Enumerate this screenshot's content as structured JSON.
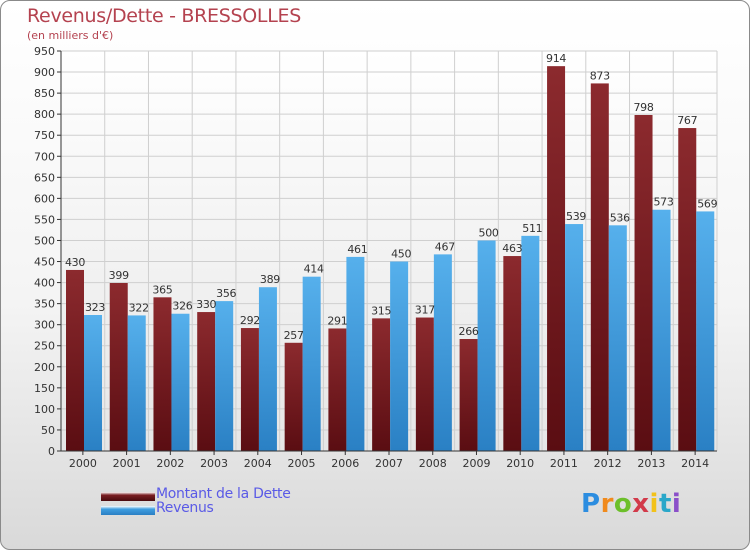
{
  "chart_data": {
    "type": "bar",
    "title": "Revenus/Dette - BRESSOLLES",
    "subtitle": "(en milliers d'€)",
    "categories": [
      "2000",
      "2001",
      "2002",
      "2003",
      "2004",
      "2005",
      "2006",
      "2007",
      "2008",
      "2009",
      "2010",
      "2011",
      "2012",
      "2013",
      "2014"
    ],
    "series": [
      {
        "name": "Montant de la Dette",
        "color": "#7a1e22",
        "values": [
          430,
          399,
          365,
          330,
          292,
          257,
          291,
          315,
          317,
          266,
          463,
          914,
          873,
          798,
          767
        ]
      },
      {
        "name": "Revenus",
        "color": "#3f9ee0",
        "values": [
          323,
          322,
          326,
          356,
          389,
          414,
          461,
          450,
          467,
          500,
          511,
          539,
          536,
          573,
          569
        ]
      }
    ],
    "yticks": [
      0,
      50,
      100,
      150,
      200,
      250,
      300,
      350,
      400,
      450,
      500,
      550,
      600,
      650,
      700,
      750,
      800,
      850,
      900,
      950
    ],
    "ylim": [
      0,
      950
    ],
    "xlabel": "",
    "ylabel": "",
    "grid": true,
    "legend_position": "bottom-left"
  },
  "legend": {
    "debt_label": "Montant de la Dette",
    "revenue_label": "Revenus"
  },
  "brand": {
    "name": "Proxiti",
    "letters": [
      "P",
      "r",
      "o",
      "x",
      "i",
      "t",
      "i"
    ],
    "colors": [
      "#2c8de0",
      "#f08a1c",
      "#6cbf2a",
      "#d23a4a",
      "#f2c21a",
      "#2aa7c9",
      "#8a4fc9"
    ]
  }
}
